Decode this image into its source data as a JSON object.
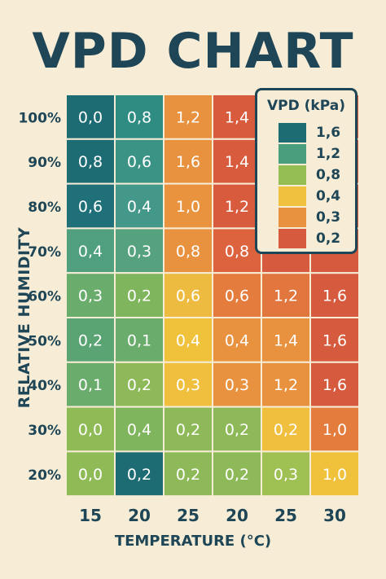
{
  "chart_data": {
    "type": "heatmap",
    "title": "VPD CHART",
    "xlabel": "TEMPERATURE (°C)",
    "ylabel": "RELATIVE HUMIDITY",
    "x_tick_labels": [
      "15",
      "20",
      "25",
      "20",
      "25",
      "30"
    ],
    "y_tick_labels": [
      "100%",
      "90%",
      "80%",
      "70%",
      "60%",
      "50%",
      "40%",
      "30%",
      "20%"
    ],
    "cells": [
      [
        "0,0",
        "0,8",
        "1,2",
        "1,4",
        "",
        ""
      ],
      [
        "0,8",
        "0,6",
        "1,6",
        "1,4",
        "",
        ""
      ],
      [
        "0,6",
        "0,4",
        "1,0",
        "1,2",
        "",
        ""
      ],
      [
        "0,4",
        "0,3",
        "0,8",
        "0,8",
        "",
        ""
      ],
      [
        "0,3",
        "0,2",
        "0,6",
        "0,6",
        "1,2",
        "1,6"
      ],
      [
        "0,2",
        "0,1",
        "0,4",
        "0,4",
        "1,4",
        "1,6"
      ],
      [
        "0,1",
        "0,2",
        "0,3",
        "0,3",
        "1,2",
        "1,6"
      ],
      [
        "0,0",
        "0,4",
        "0,2",
        "0,2",
        "0,2",
        "1,0"
      ],
      [
        "0,0",
        "0,2",
        "0,2",
        "0,2",
        "0,3",
        "1,0"
      ]
    ],
    "cell_colors": [
      [
        "#1d6b73",
        "#2e8c82",
        "#e8913f",
        "#d95b3e",
        "#d65a3d",
        "#d65a3d"
      ],
      [
        "#1d6b73",
        "#3a9385",
        "#e8913f",
        "#d95b3e",
        "#d65a3d",
        "#d65a3d"
      ],
      [
        "#20707a",
        "#44988a",
        "#e9933f",
        "#d95b3e",
        "#d65a3d",
        "#d65a3d"
      ],
      [
        "#50a07f",
        "#56a27e",
        "#e8923f",
        "#dc633e",
        "#d65a3d",
        "#d65a3d"
      ],
      [
        "#6aac6c",
        "#7fb55c",
        "#ecbb3f",
        "#e47c3d",
        "#e1763e",
        "#d65a3d"
      ],
      [
        "#5aa473",
        "#6aac6c",
        "#f0c23c",
        "#e8913f",
        "#e8913f",
        "#d65a3d"
      ],
      [
        "#6aac6c",
        "#8db958",
        "#efbf3d",
        "#e8913f",
        "#e8913f",
        "#d65a3d"
      ],
      [
        "#8fbb57",
        "#7fb55c",
        "#8db958",
        "#8db958",
        "#efbf3d",
        "#e47c3d"
      ],
      [
        "#8fbb57",
        "#1d6b73",
        "#8db958",
        "#8db958",
        "#9fc052",
        "#f0c23c"
      ]
    ],
    "legend": {
      "title": "VPD (kPa)",
      "placement": "top-right",
      "items": [
        {
          "label": "1,6",
          "color": "#1d6b73"
        },
        {
          "label": "1,2",
          "color": "#4a9d7d"
        },
        {
          "label": "0,8",
          "color": "#95bf55"
        },
        {
          "label": "0,4",
          "color": "#efc13e"
        },
        {
          "label": "0,3",
          "color": "#e8913f"
        },
        {
          "label": "0,2",
          "color": "#d65a3d"
        }
      ]
    },
    "grid": true
  },
  "colors": {
    "background": "#f7ecd6",
    "text_dark": "#1f4656",
    "cell_text": "#ffffff",
    "grid_line": "#f7ecd6"
  }
}
